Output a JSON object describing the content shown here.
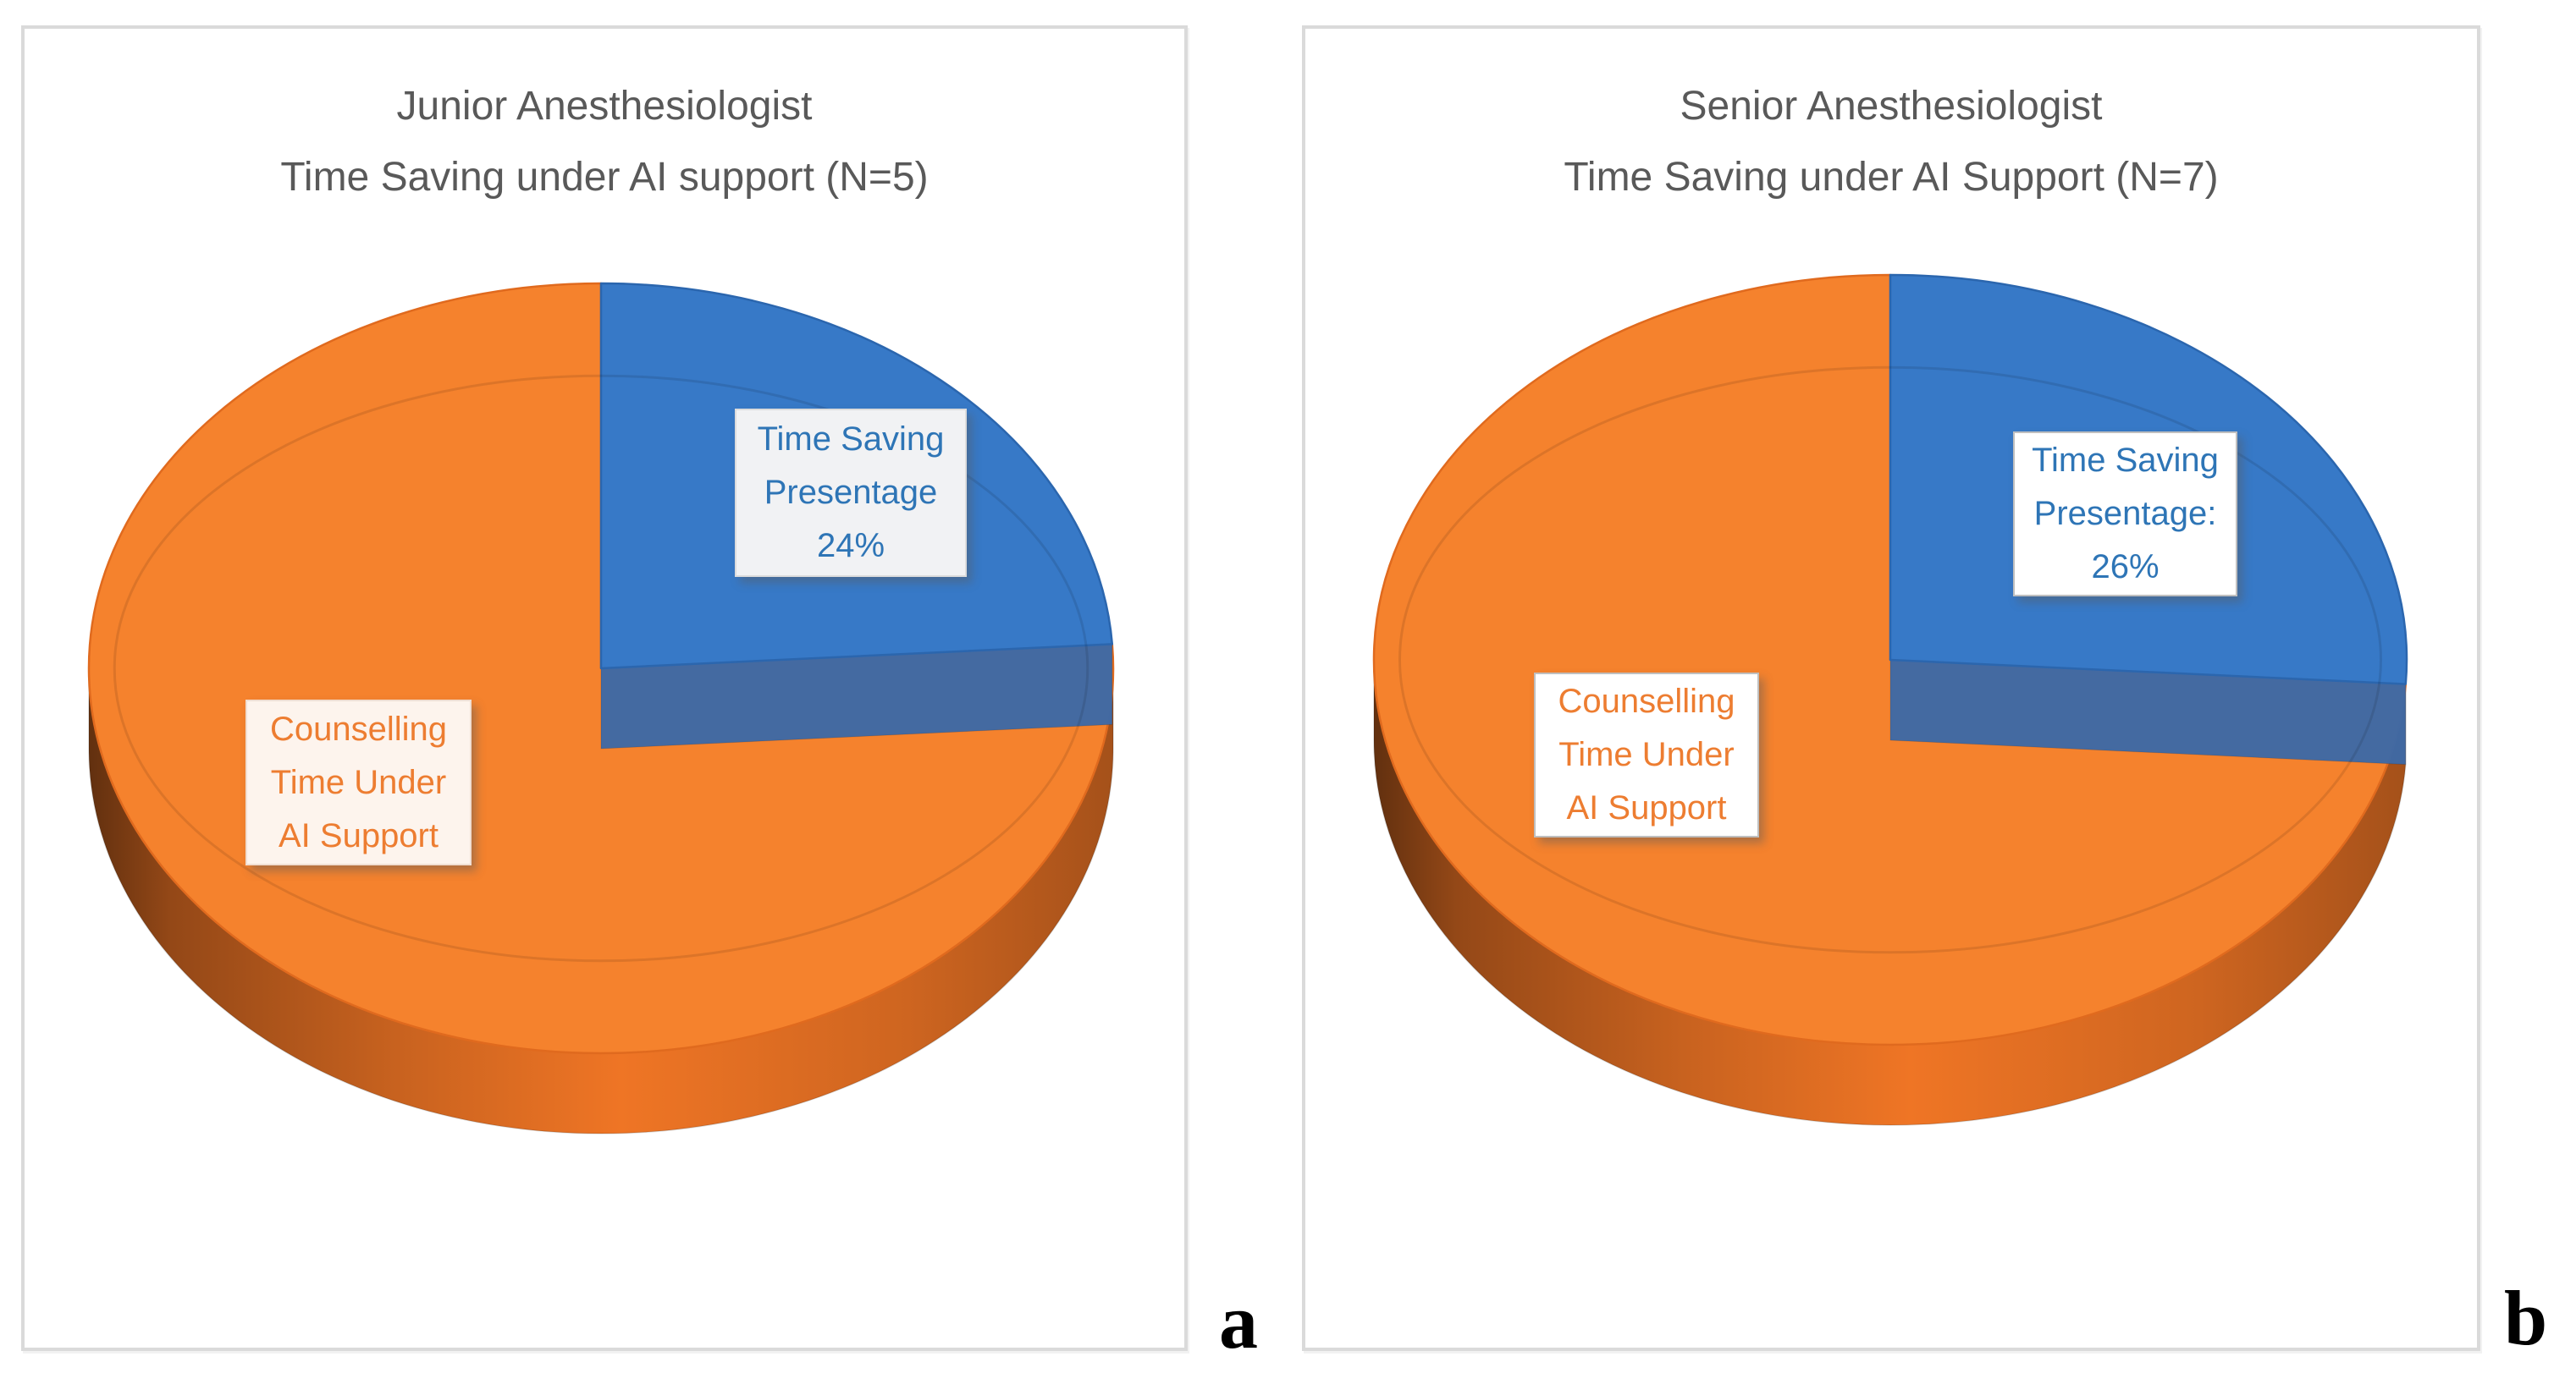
{
  "figure": {
    "background": "#FFFFFF",
    "title_color": "#595959",
    "panel_border_color": "#DADADA"
  },
  "chart_data": [
    {
      "type": "pie",
      "style": "3d",
      "panel_letter": "a",
      "title_line1": "Junior Anesthesiologist",
      "title_line2": "Time Saving under AI support (N=5)",
      "start": "top",
      "direction": "clockwise",
      "legend": "none",
      "slices": [
        {
          "name": "Time Saving Presentage",
          "value_pct": 24,
          "top_color": "#3779C7",
          "side_color": "#3E69A5",
          "outline_color": "#2B66AE",
          "label_lines": [
            "Time Saving",
            "Presentage",
            "24%"
          ],
          "label_text_color": "#2E75B6",
          "label_bg_color": "#F1F2F4",
          "label_border_color": "#DCDCDC"
        },
        {
          "name": "Counselling Time Under AI Support",
          "value_pct": 76,
          "top_color": "#F5822D",
          "side_color": "#D96A22",
          "outline_color": "#E06A1E",
          "label_lines": [
            "Counselling",
            "Time Under",
            "AI Support"
          ],
          "label_text_color": "#ED7D31",
          "label_bg_color": "#FDF4ED",
          "label_border_color": "#F0DED2"
        }
      ]
    },
    {
      "type": "pie",
      "style": "3d",
      "panel_letter": "b",
      "title_line1": "Senior Anesthesiologist",
      "title_line2": "Time Saving under AI Support (N=7)",
      "start": "top",
      "direction": "clockwise",
      "legend": "none",
      "slices": [
        {
          "name": "Time Saving Presentage",
          "value_pct": 26,
          "top_color": "#3779C7",
          "side_color": "#3E69A5",
          "outline_color": "#2B66AE",
          "label_lines": [
            "Time Saving",
            "Presentage:",
            "26%"
          ],
          "label_text_color": "#2E75B6",
          "label_bg_color": "#FFFFFF",
          "label_border_color": "#BFBFBF"
        },
        {
          "name": "Counselling Time Under AI Support",
          "value_pct": 74,
          "top_color": "#F5822D",
          "side_color": "#D96A22",
          "outline_color": "#E06A1E",
          "label_lines": [
            "Counselling",
            "Time Under",
            "AI Support"
          ],
          "label_text_color": "#ED7D31",
          "label_bg_color": "#FFFFFF",
          "label_border_color": "#BFBFBF"
        }
      ]
    }
  ]
}
